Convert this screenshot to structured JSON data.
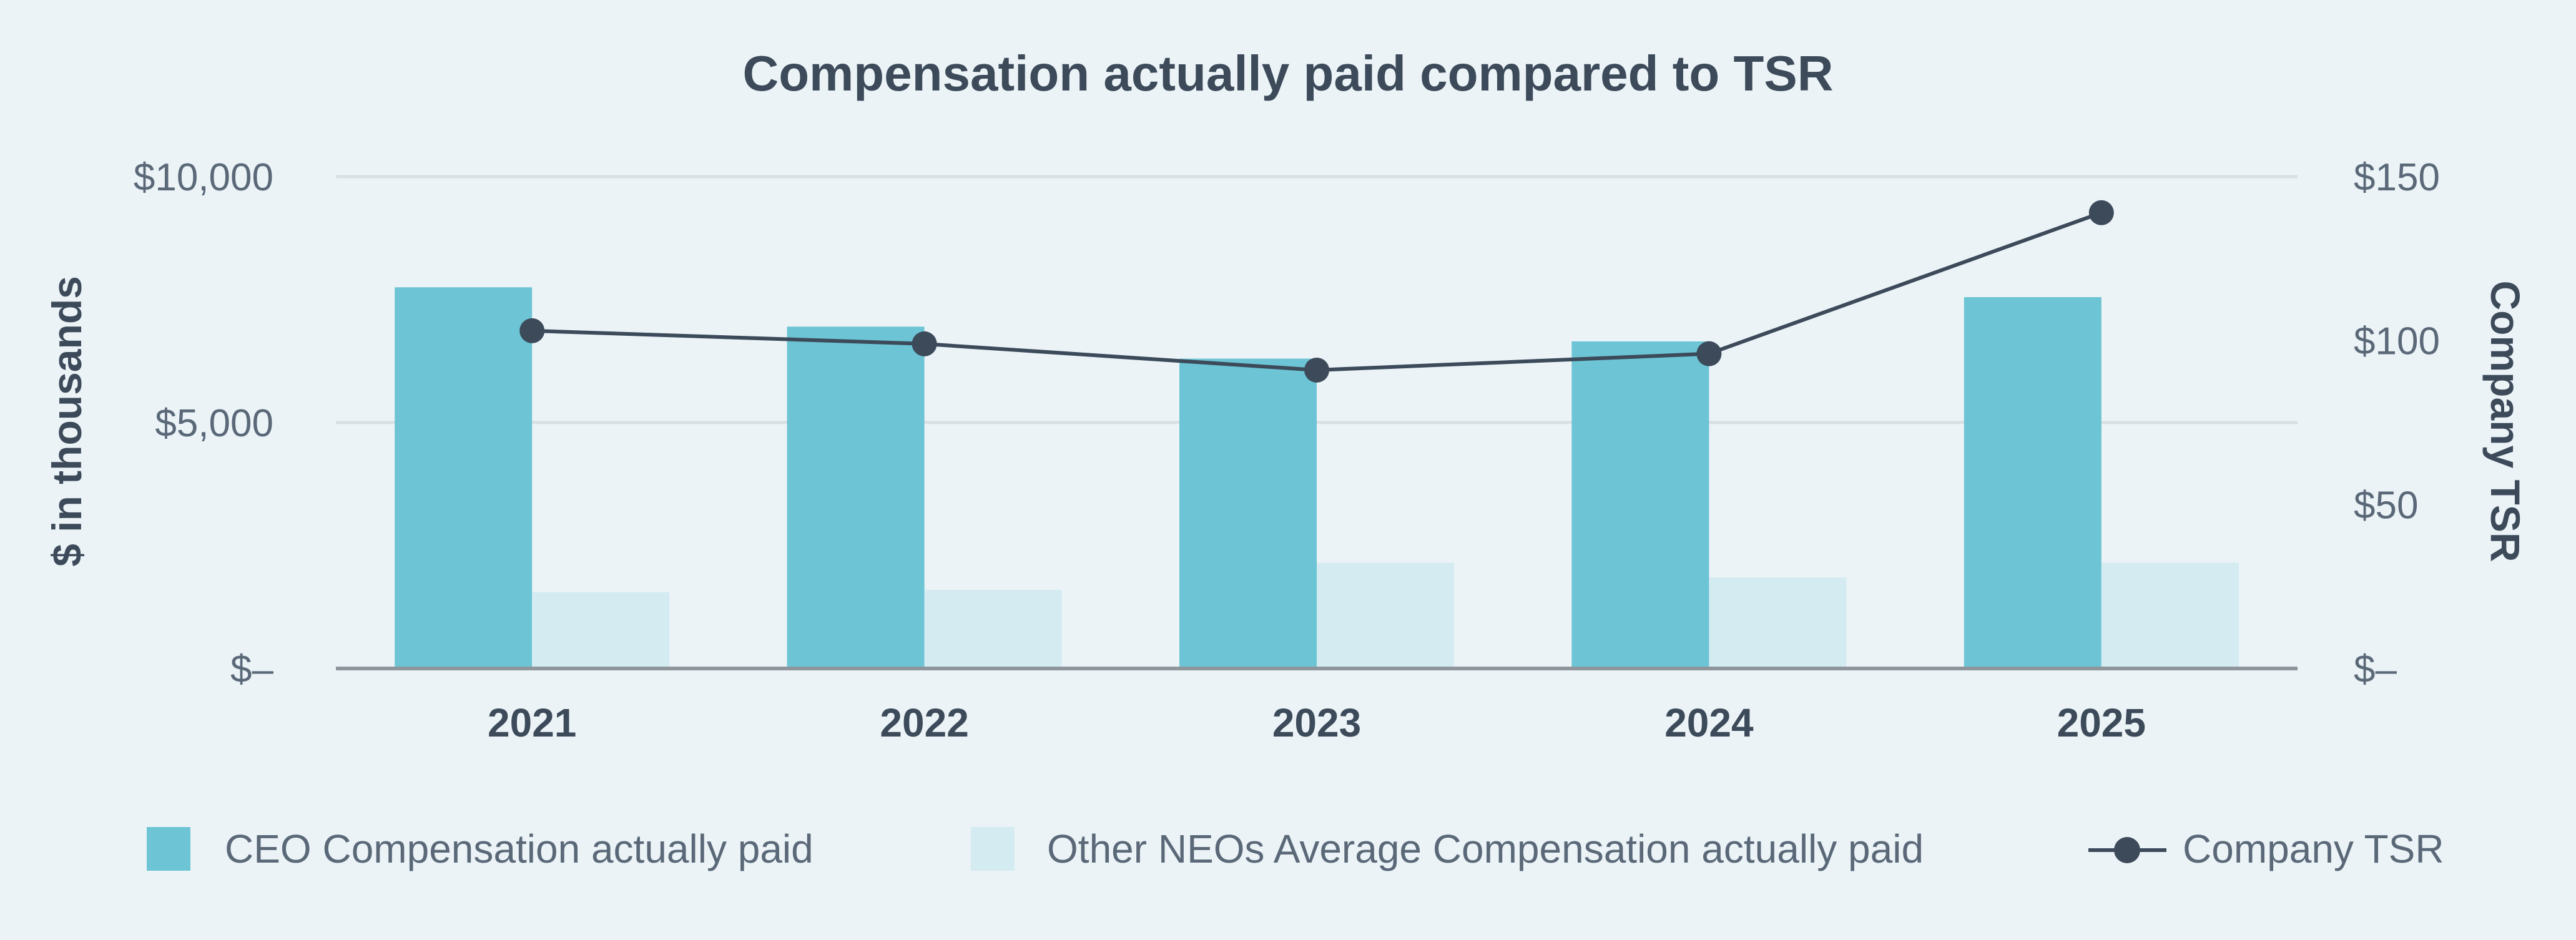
{
  "chart_data": {
    "type": "bar",
    "title": "Compensation actually paid compared to TSR",
    "categories": [
      "2021",
      "2022",
      "2023",
      "2024",
      "2025"
    ],
    "series": [
      {
        "name": "CEO Compensation actually paid",
        "kind": "bar",
        "axis": "left",
        "color": "#6CC4D4",
        "values": [
          7750,
          6950,
          6300,
          6650,
          7550
        ]
      },
      {
        "name": "Other NEOs Average Compensation actually paid",
        "kind": "bar",
        "axis": "left",
        "color": "#D3EBF1",
        "values": [
          1550,
          1600,
          2150,
          1850,
          2150
        ]
      },
      {
        "name": "Company TSR",
        "kind": "line",
        "axis": "right",
        "color": "#3C4A5A",
        "values": [
          103,
          99,
          91,
          96,
          139
        ]
      }
    ],
    "ylabel": "$ in thousands",
    "y2label": "Company TSR",
    "ylim": [
      0,
      10000
    ],
    "y2lim": [
      0,
      150
    ],
    "yticks": [
      {
        "value": 0,
        "label": "$–"
      },
      {
        "value": 5000,
        "label": "$5,000"
      },
      {
        "value": 10000,
        "label": "$10,000"
      }
    ],
    "y2ticks": [
      {
        "value": 0,
        "label": "$–"
      },
      {
        "value": 50,
        "label": "$50"
      },
      {
        "value": 100,
        "label": "$100"
      },
      {
        "value": 150,
        "label": "$150"
      }
    ],
    "grid": true,
    "legend_position": "bottom"
  },
  "colors": {
    "background": "#EBF3F7",
    "grid": "#D9DFE3",
    "axis_line": "#8E969C",
    "text_dark": "#3C4A5A",
    "text_tick": "#5A6878"
  }
}
